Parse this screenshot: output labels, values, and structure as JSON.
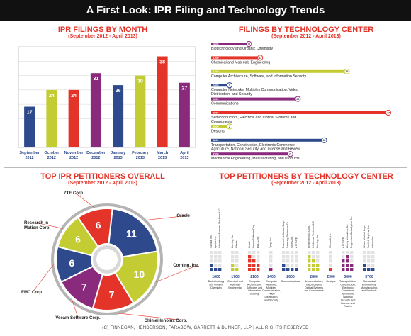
{
  "header": {
    "title": "A First Look: IPR Filing and Technology Trends"
  },
  "footer": {
    "text": "(C) FINNEGAN, HENDERSON, FARABOW, GARRETT & DUNNER, LLP | ALL RIGHTS RESERVED"
  },
  "panels": {
    "month": {
      "title": "IPR FILINGS BY MONTH",
      "subtitle": "(September 2012 - April 2013)"
    },
    "tech": {
      "title": "FILINGS BY TECHNOLOGY CENTER",
      "subtitle": "(September 2012 - April 2013)"
    },
    "pet": {
      "title": "TOP IPR PETITIONERS OVERALL",
      "subtitle": "(September 2012 - April 2013)"
    },
    "pettech": {
      "title": "TOP PETITIONERS BY TECHNOLOGY CENTER",
      "subtitle": "(September 2012 - April 2013)"
    }
  },
  "chart_data": [
    {
      "type": "bar",
      "title": "IPR FILINGS BY MONTH",
      "subtitle": "(September 2012 - April 2013)",
      "categories": [
        [
          "September",
          "2012"
        ],
        [
          "October",
          "2012"
        ],
        [
          "November",
          "2012"
        ],
        [
          "December",
          "2012"
        ],
        [
          "January",
          "2013"
        ],
        [
          "February",
          "2013"
        ],
        [
          "March",
          "2013"
        ],
        [
          "April",
          "2013"
        ]
      ],
      "values": [
        17,
        24,
        24,
        31,
        26,
        30,
        38,
        27
      ],
      "colors": [
        "#2e4a8c",
        "#c3cc32",
        "#e4342a",
        "#8a2a7c",
        "#2e4a8c",
        "#c3cc32",
        "#e4342a",
        "#8a2a7c"
      ],
      "ylim": [
        0,
        42
      ],
      "grid": true
    },
    {
      "type": "bar",
      "title": "FILINGS BY TECHNOLOGY CENTER",
      "subtitle": "(September 2012 - April 2013)",
      "orientation": "horizontal",
      "categories": [
        {
          "code": "1600",
          "label": "Biotechnology and Organic Chemistry"
        },
        {
          "code": "1700",
          "label": "Chemical and Materials Engineering"
        },
        {
          "code": "2100",
          "label": "Computer Architecture, Software, and Information Security"
        },
        {
          "code": "2400",
          "label": "Computer Networks, Multiplex Communication, Video Distribution, and Security"
        },
        {
          "code": "2600",
          "label": "Communications"
        },
        {
          "code": "2800",
          "label": "Semiconductors, Electrical and Optical Systems and Components"
        },
        {
          "code": "2900",
          "label": "Designs"
        },
        {
          "code": "3600",
          "label": "Transportation, Construction, Electronic Commerce, Agriculture, National Security, and License and Review"
        },
        {
          "code": "3700",
          "label": "Mechanical Engineering, Manufacturing, and Products"
        }
      ],
      "values": [
        10,
        13,
        36,
        0,
        23,
        47,
        2,
        30,
        21
      ],
      "colors": [
        "#8a2a7c",
        "#e4342a",
        "#c3cc32",
        "#2e4a8c",
        "#8a2a7c",
        "#e4342a",
        "#c3cc32",
        "#2e4a8c",
        "#8a2a7c"
      ],
      "xlim": [
        0,
        47
      ]
    },
    {
      "type": "pie",
      "title": "TOP IPR PETITIONERS OVERALL",
      "subtitle": "(September 2012 - April 2013)",
      "labels": [
        "Oracle",
        "Corning, Inc.",
        "Chimei Innolux Corp.",
        "Veeam Software Corp.",
        "EMC Corp.",
        "Research In Motion Corp.",
        "ZTE Corp."
      ],
      "values": [
        11,
        10,
        7,
        7,
        6,
        6,
        6
      ],
      "colors": [
        "#2e4a8c",
        "#c3cc32",
        "#e4342a",
        "#8a2a7c",
        "#2e4a8c",
        "#c3cc32",
        "#e4342a"
      ]
    },
    {
      "type": "heatmap",
      "title": "TOP PETITIONERS BY TECHNOLOGY CENTER",
      "subtitle": "(September 2012 - April 2013)",
      "groups": [
        {
          "code": "1600",
          "name": "Biotechnology and Organic Chemistry",
          "petitioners": [
            "Xianxia, Inc.",
            "Apotex Inc.",
            "International Business Machines LLC"
          ],
          "color": "#2e4a8c",
          "counts": [
            2,
            1,
            1
          ]
        },
        {
          "code": "1700",
          "name": "Chemical and Materials Engineering",
          "petitioners": [
            "Corning, Inc.",
            "Gillette"
          ],
          "color": "#c3cc32",
          "counts": [
            2,
            1
          ]
        },
        {
          "code": "2100",
          "name": "Computer Architecture, Software, and Information Security",
          "petitioners": [
            "Oracle",
            "Veeam Software Corp.",
            "EMC Corp."
          ],
          "color": "#e4342a",
          "counts": [
            4,
            3,
            2
          ]
        },
        {
          "code": "2400",
          "name": "Computer Networks, Multiplex Communication, Video Distribution, and Security",
          "petitioners": [
            "Zynga Inc."
          ],
          "color": "#8a2a7c",
          "counts": [
            1
          ]
        },
        {
          "code": "2600",
          "name": "Communications",
          "petitioners": [
            "Research In Motion Corp.",
            "Samsung Electronics Co.",
            "Sony Corp.",
            "ZTE Corp."
          ],
          "color": "#2e4a8c",
          "counts": [
            2,
            1,
            1,
            1
          ]
        },
        {
          "code": "2800",
          "name": "Semiconductors, Electrical and Optical Systems and Components",
          "petitioners": [
            "Chimei Innolux Corp.",
            "Intellectual Ventures LLC",
            "Corning, Inc."
          ],
          "color": "#c3cc32",
          "counts": [
            4,
            3,
            2
          ]
        },
        {
          "code": "2900",
          "name": "Designs",
          "petitioners": [
            "Microsoft, Inc."
          ],
          "color": "#e4342a",
          "counts": [
            1
          ]
        },
        {
          "code": "3600",
          "name": "Transportation, Construction, Electronic Commerce, Agriculture, National Security, and License and Review",
          "petitioners": [
            "ZTE Corp.",
            "Liberty Mutual Ins. Co.",
            "Progressive Casualty Ins. Co."
          ],
          "color": "#8a2a7c",
          "counts": [
            3,
            4,
            2
          ]
        },
        {
          "code": "3700",
          "name": "Mechanical Engineering, Manufacturing, and Products",
          "petitioners": [
            "Wilson Medical Corp.",
            "Smith & Nephew, Inc.",
            "Arthrex Inc."
          ],
          "color": "#2e4a8c",
          "counts": [
            2,
            1,
            1
          ]
        }
      ]
    }
  ]
}
